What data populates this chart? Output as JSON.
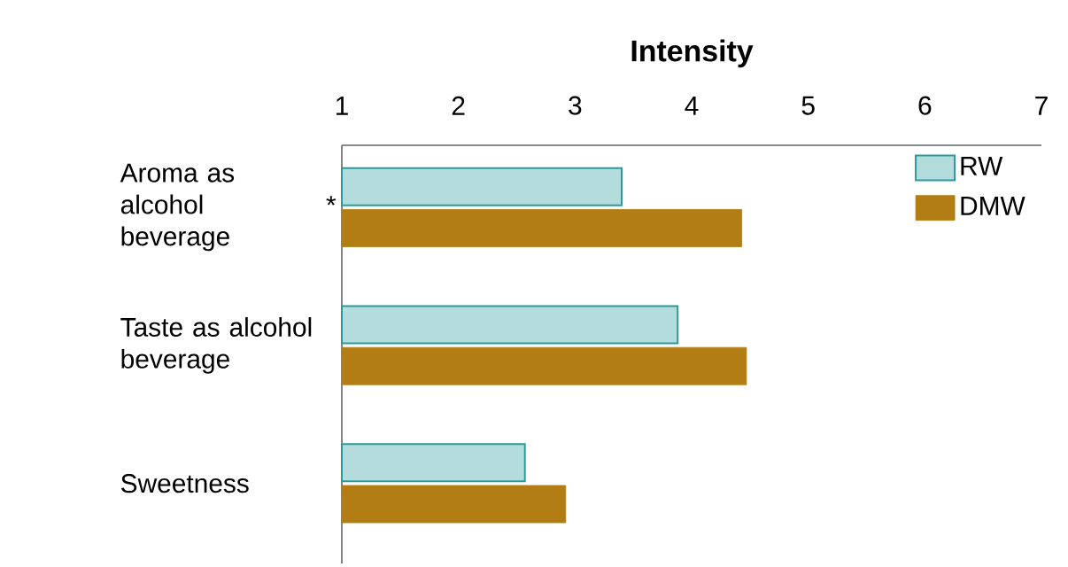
{
  "chart_data": {
    "type": "bar",
    "orientation": "horizontal",
    "xlabel": "Intensity",
    "categories": [
      "Aroma as alcohol beverage",
      "Taste as alcohol beverage",
      "Sweetness"
    ],
    "series": [
      {
        "name": "RW",
        "color": "#2a9a9a",
        "values": [
          3.4,
          3.88,
          2.57
        ]
      },
      {
        "name": "DMW",
        "color": "#b27d14",
        "values": [
          4.43,
          4.47,
          2.92
        ]
      }
    ],
    "xlim": [
      1,
      7
    ],
    "xticks": [
      1,
      2,
      3,
      4,
      5,
      6,
      7
    ],
    "legend": "top right",
    "annotations": [
      "*"
    ]
  }
}
